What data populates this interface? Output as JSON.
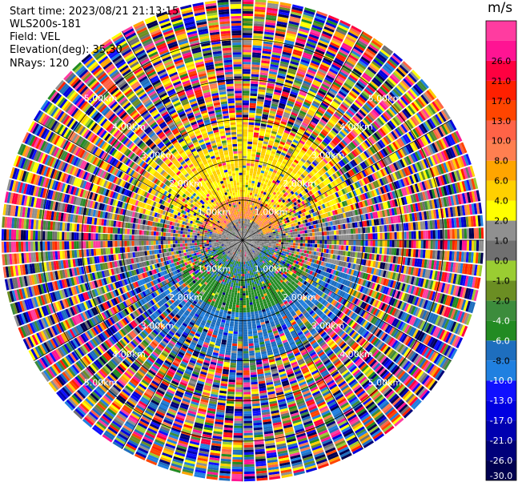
{
  "header": {
    "start_time": "Start time: 2023/08/21 21:13:15",
    "instrument": "WLS200s-181",
    "field": "Field: VEL",
    "elevation": "Elevation(deg): 35.30",
    "nrays": "NRays: 120"
  },
  "chart_data": {
    "type": "ppi",
    "field": "VEL",
    "units": "m/s",
    "nrays": 120,
    "range_rings_km": [
      1.0,
      2.0,
      3.0,
      4.0,
      5.0
    ],
    "max_range_km": 6.0,
    "ring_labels": [
      "1.00km",
      "2.00km",
      "3.00km",
      "4.00km",
      "5.00km"
    ],
    "colorbar": {
      "title": "m/s",
      "bounds": [
        -30.0,
        -26.0,
        -21.0,
        -17.0,
        -13.0,
        -10.0,
        -8.0,
        -6.0,
        -4.0,
        -2.0,
        -1.0,
        0.0,
        1.0,
        2.0,
        4.0,
        6.0,
        8.0,
        10.0,
        13.0,
        17.0,
        21.0,
        26.0,
        30.0
      ],
      "tick_labels": [
        "-30.0",
        "-26.0",
        "-21.0",
        "-17.0",
        "-13.0",
        "-10.0",
        "-8.0",
        "-6.0",
        "-4.0",
        "-2.0",
        "-1.0",
        "0.0",
        "1.0",
        "2.0",
        "4.0",
        "6.0",
        "8.0",
        "10.0",
        "13.0",
        "17.0",
        "21.0",
        "26.0"
      ],
      "colors": [
        "#000050",
        "#00007a",
        "#0000b0",
        "#0000e0",
        "#1010ff",
        "#2080e0",
        "#1e6ebe",
        "#228b22",
        "#3c8c3c",
        "#6b8e23",
        "#9acd32",
        "#707070",
        "#909090",
        "#ffff00",
        "#ffd000",
        "#ffa500",
        "#ff7f50",
        "#ff6347",
        "#ff4500",
        "#ff2000",
        "#ff0040",
        "#ff1493",
        "#ff3ca0"
      ]
    },
    "pattern": "Velocity near zero close to radar; positive (yellow/orange) toward north, negative (green/blue) toward south; outer ranges noisy with all colours"
  }
}
